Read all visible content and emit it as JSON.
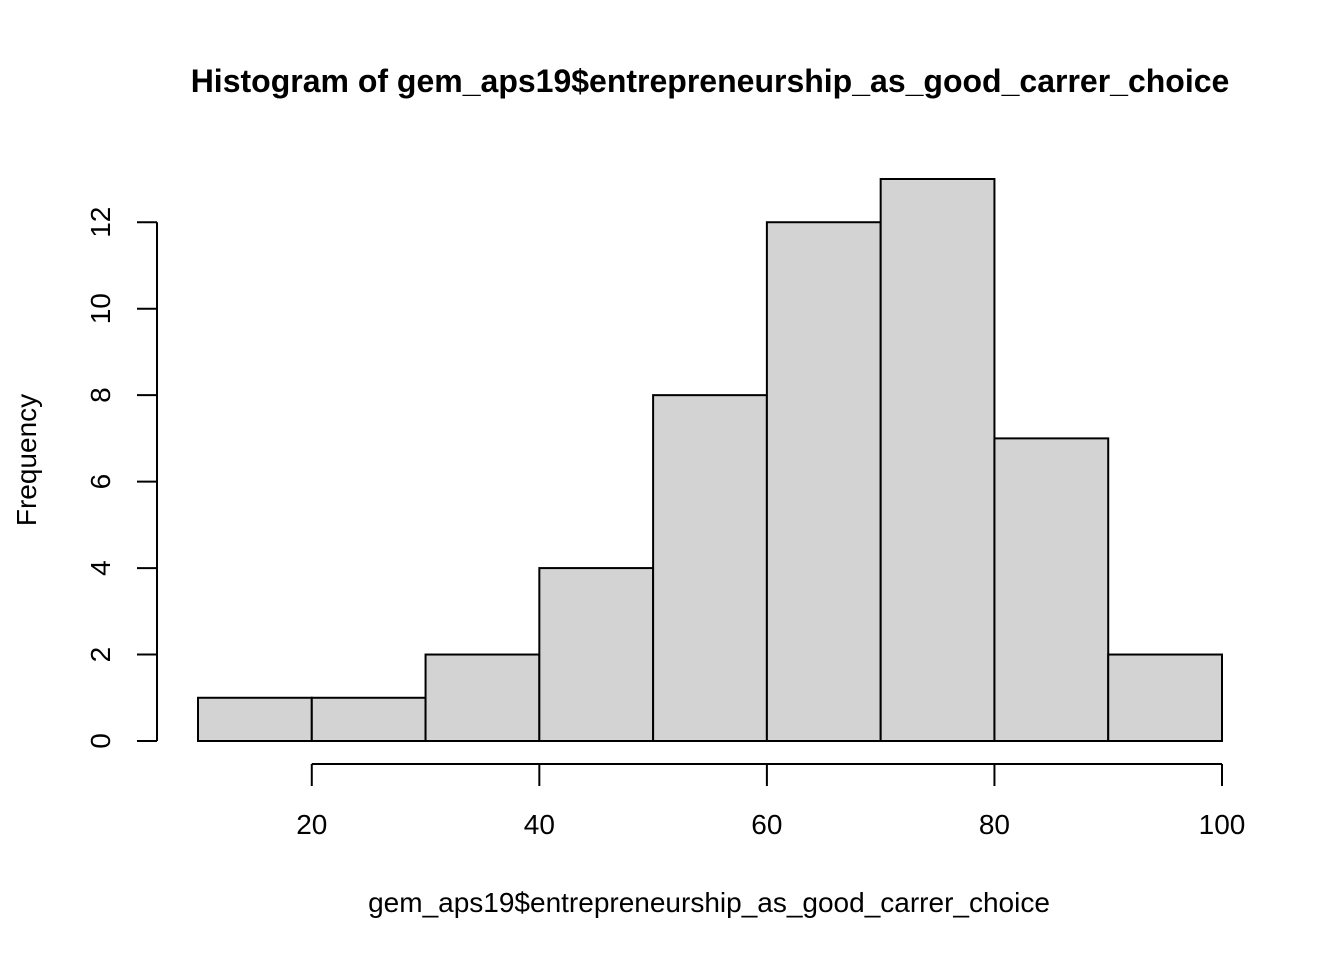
{
  "chart_data": {
    "type": "bar",
    "title": "Histogram of gem_aps19$entrepreneurship_as_good_carrer_choice",
    "xlabel": "gem_aps19$entrepreneurship_as_good_carrer_choice",
    "ylabel": "Frequency",
    "bins": [
      {
        "start": 10,
        "end": 20,
        "count": 1
      },
      {
        "start": 20,
        "end": 30,
        "count": 1
      },
      {
        "start": 30,
        "end": 40,
        "count": 2
      },
      {
        "start": 40,
        "end": 50,
        "count": 4
      },
      {
        "start": 50,
        "end": 60,
        "count": 8
      },
      {
        "start": 60,
        "end": 70,
        "count": 12
      },
      {
        "start": 70,
        "end": 80,
        "count": 13
      },
      {
        "start": 80,
        "end": 90,
        "count": 7
      },
      {
        "start": 90,
        "end": 100,
        "count": 2
      }
    ],
    "x_ticks": [
      20,
      40,
      60,
      80,
      100
    ],
    "y_ticks": [
      0,
      2,
      4,
      6,
      8,
      10,
      12
    ],
    "xlim": [
      10,
      100
    ],
    "ylim": [
      0,
      13
    ],
    "grid": false,
    "bar_color": "#d3d3d3",
    "border_color": "#000000"
  }
}
